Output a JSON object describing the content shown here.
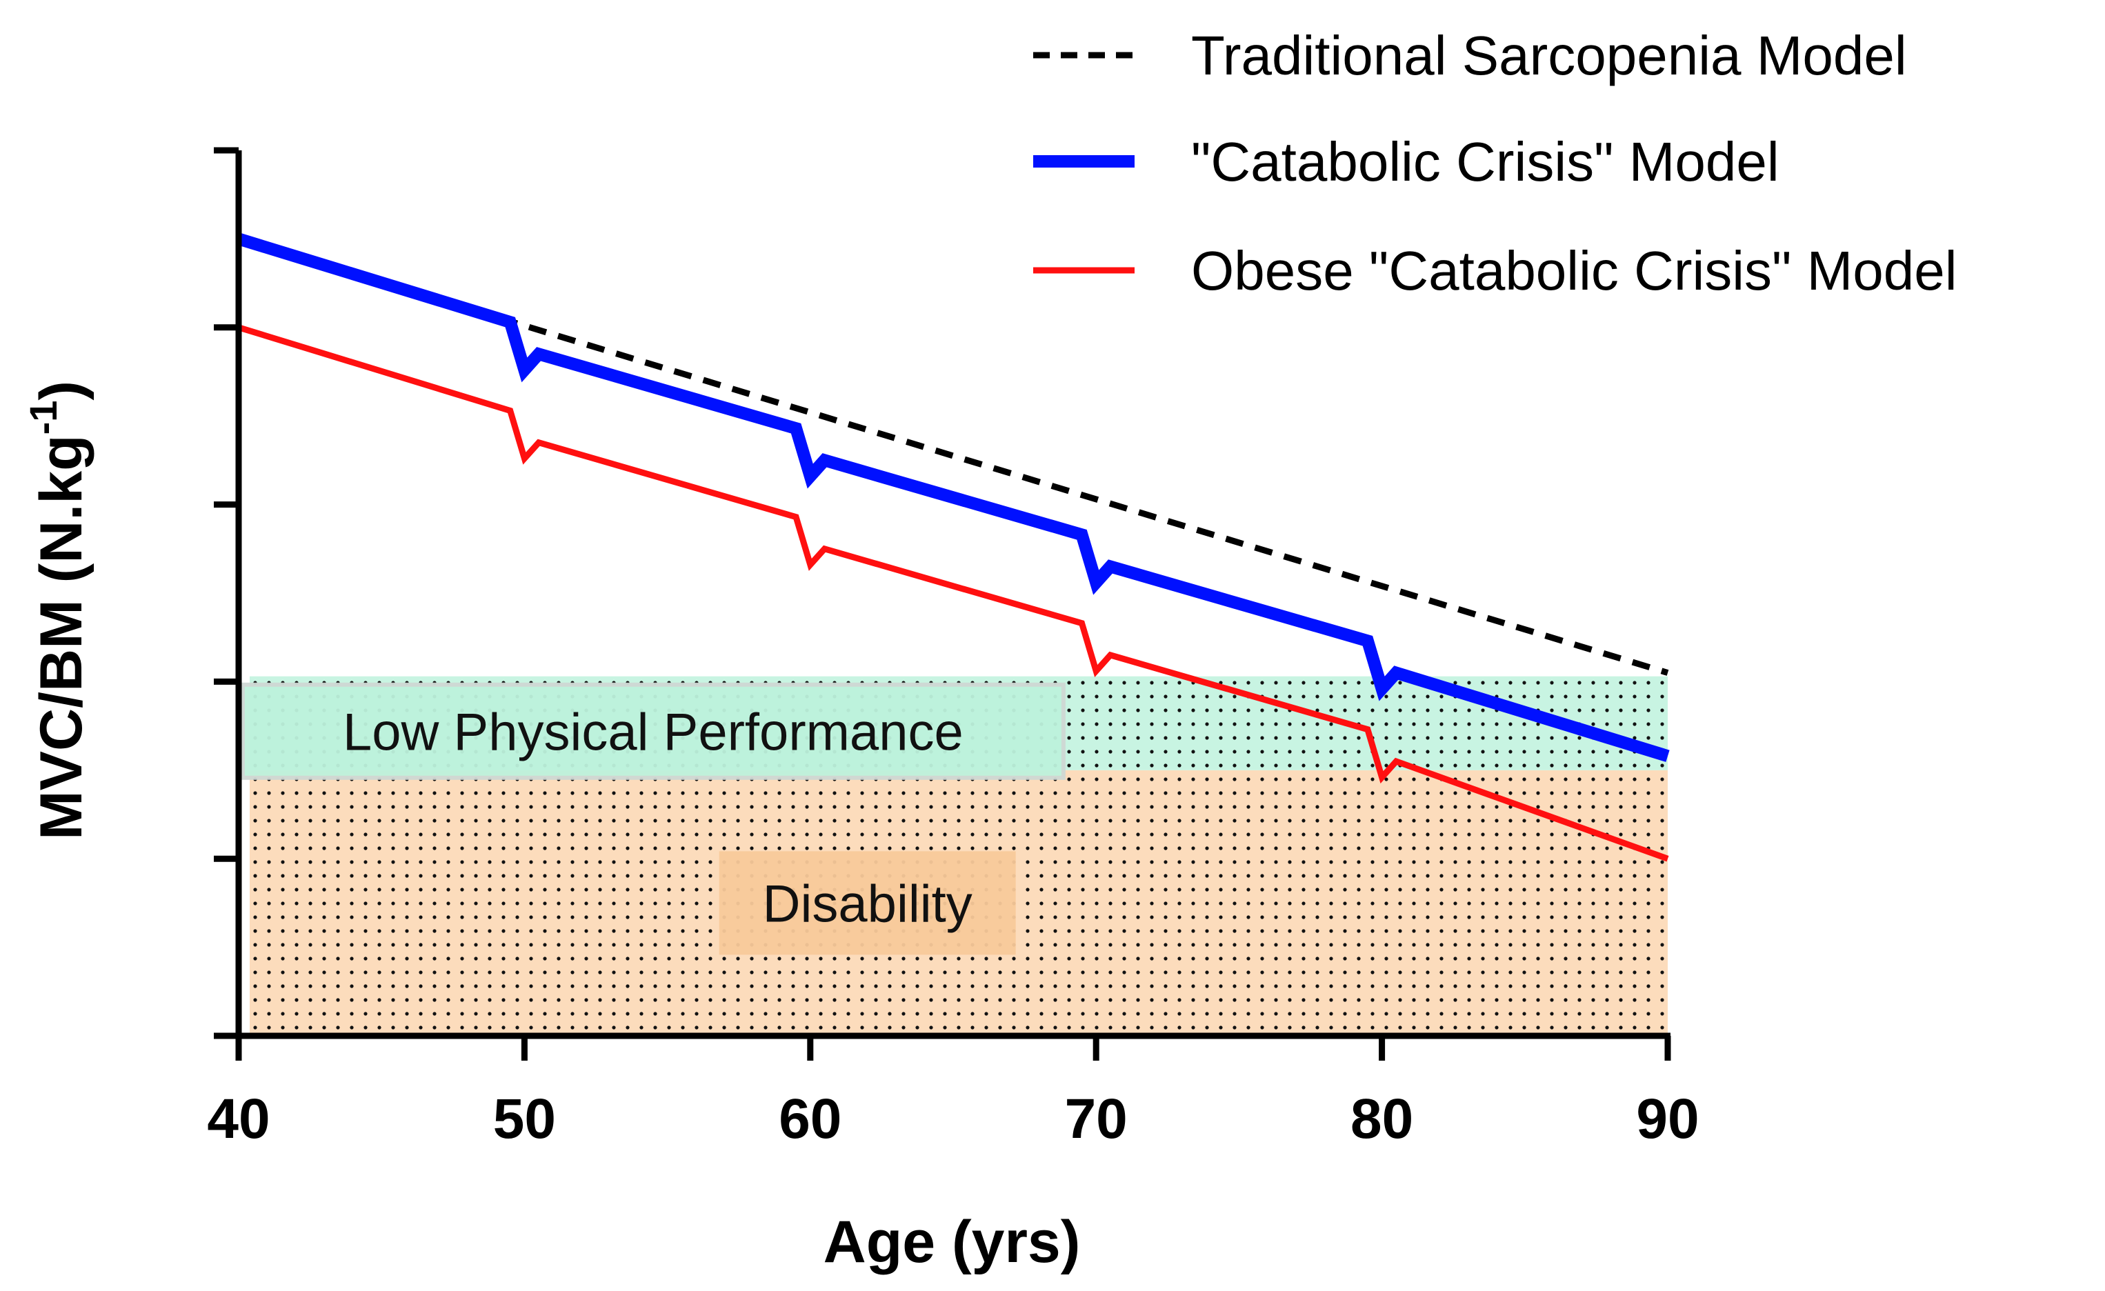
{
  "chart_data": {
    "type": "line",
    "title": "",
    "xlabel": "Age (yrs)",
    "ylabel_main": "MVC/BM (N.kg",
    "ylabel_sup": "-1",
    "ylabel_close": ")",
    "xlim": [
      40,
      90
    ],
    "ylim": [
      0,
      5
    ],
    "x_ticks": [
      40,
      50,
      60,
      70,
      80,
      90
    ],
    "x_tick_labels": [
      "40",
      "50",
      "60",
      "70",
      "80",
      "90"
    ],
    "y_ticks": [
      0,
      1,
      2,
      3,
      4,
      5
    ],
    "y_tick_labels": [
      "",
      "",
      "",
      "",
      "",
      ""
    ],
    "grid": false,
    "legend_position": "top-right",
    "regions": [
      {
        "name": "Disability",
        "label": "Disability",
        "y_from": 0,
        "y_to": 1.5,
        "fill": "#fcdcbc",
        "label_box": "#f8c99a",
        "label_x": 62,
        "label_y": 0.75
      },
      {
        "name": "Low Physical Performance",
        "label": "Low Physical Performance",
        "y_from": 1.5,
        "y_to": 2.03,
        "fill": "#c8f4e2",
        "label_box": "#bdf2dc",
        "label_x": 54.5,
        "label_y": 1.72
      }
    ],
    "series": [
      {
        "name": "Traditional Sarcopenia Model",
        "color": "#000000",
        "style": "dashed",
        "x": [
          40,
          90
        ],
        "y": [
          4.5,
          2.05
        ]
      },
      {
        "name": "\"Catabolic Crisis\" Model",
        "color": "#0010ff",
        "style": "solid-thick",
        "x": [
          40,
          49.5,
          50,
          50.5,
          59.5,
          60,
          60.5,
          69.5,
          70,
          70.5,
          79.5,
          80,
          80.5,
          90
        ],
        "y": [
          4.5,
          4.03,
          3.76,
          3.85,
          3.43,
          3.16,
          3.25,
          2.83,
          2.56,
          2.65,
          2.23,
          1.96,
          2.05,
          1.58
        ]
      },
      {
        "name": "Obese \"Catabolic Crisis\" Model",
        "color": "#ff1010",
        "style": "solid",
        "x": [
          40,
          49.5,
          50,
          50.5,
          59.5,
          60,
          60.5,
          69.5,
          70,
          70.5,
          79.5,
          80,
          80.5,
          90
        ],
        "y": [
          4.0,
          3.53,
          3.26,
          3.35,
          2.93,
          2.66,
          2.75,
          2.33,
          2.06,
          2.15,
          1.73,
          1.46,
          1.55,
          1.0
        ]
      }
    ]
  }
}
